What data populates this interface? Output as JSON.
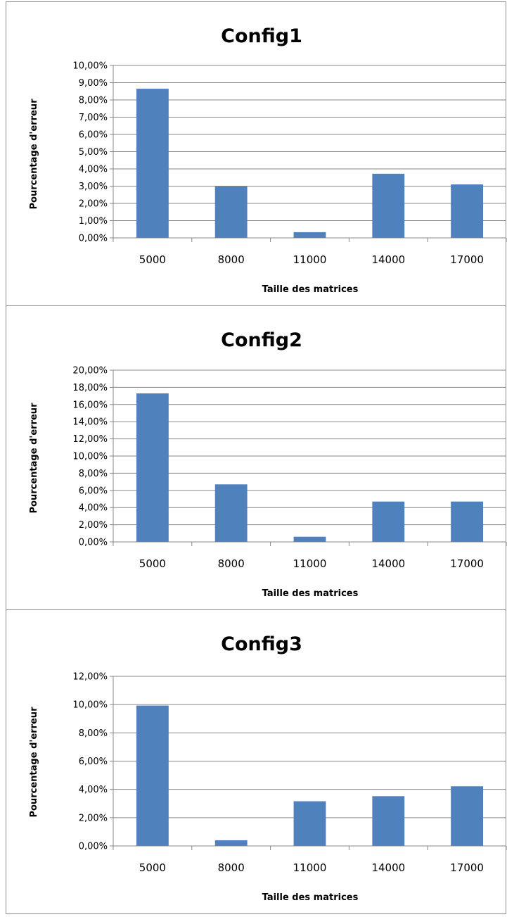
{
  "chart_data": [
    {
      "type": "bar",
      "title": "Config1",
      "xlabel": "Taille des matrices",
      "ylabel": "Pourcentage d'erreur",
      "categories": [
        "5000",
        "8000",
        "11000",
        "14000",
        "17000"
      ],
      "values": [
        0.0865,
        0.0298,
        0.0033,
        0.0372,
        0.031
      ],
      "ylim": [
        0,
        0.1
      ],
      "ystep": 0.01,
      "yticks": [
        "0,00%",
        "1,00%",
        "2,00%",
        "3,00%",
        "4,00%",
        "5,00%",
        "6,00%",
        "7,00%",
        "8,00%",
        "9,00%",
        "10,00%"
      ],
      "grid": true,
      "bar_color": "#4f81bd"
    },
    {
      "type": "bar",
      "title": "Config2",
      "xlabel": "Taille des matrices",
      "ylabel": "Pourcentage d'erreur",
      "categories": [
        "5000",
        "8000",
        "11000",
        "14000",
        "17000"
      ],
      "values": [
        0.173,
        0.067,
        0.006,
        0.047,
        0.047
      ],
      "ylim": [
        0,
        0.2
      ],
      "ystep": 0.02,
      "yticks": [
        "0,00%",
        "2,00%",
        "4,00%",
        "6,00%",
        "8,00%",
        "10,00%",
        "12,00%",
        "14,00%",
        "16,00%",
        "18,00%",
        "20,00%"
      ],
      "grid": true,
      "bar_color": "#4f81bd"
    },
    {
      "type": "bar",
      "title": "Config3",
      "xlabel": "Taille des matrices",
      "ylabel": "Pourcentage d'erreur",
      "categories": [
        "5000",
        "8000",
        "11000",
        "14000",
        "17000"
      ],
      "values": [
        0.0993,
        0.004,
        0.0316,
        0.0352,
        0.0422
      ],
      "ylim": [
        0,
        0.12
      ],
      "ystep": 0.02,
      "yticks": [
        "0,00%",
        "2,00%",
        "4,00%",
        "6,00%",
        "8,00%",
        "10,00%",
        "12,00%"
      ],
      "grid": true,
      "bar_color": "#4f81bd"
    }
  ]
}
